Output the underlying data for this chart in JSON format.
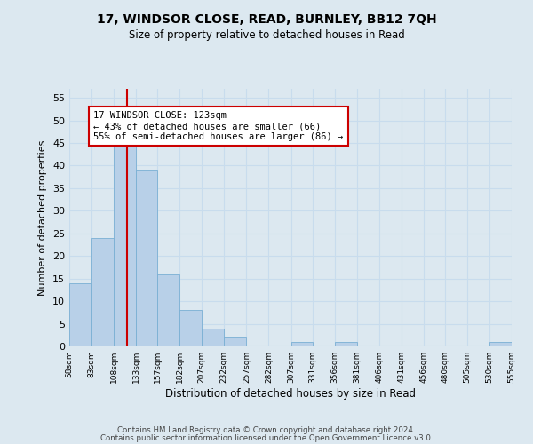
{
  "title1": "17, WINDSOR CLOSE, READ, BURNLEY, BB12 7QH",
  "title2": "Size of property relative to detached houses in Read",
  "xlabel": "Distribution of detached houses by size in Read",
  "ylabel": "Number of detached properties",
  "bin_edges": [
    58,
    83,
    108,
    133,
    157,
    182,
    207,
    232,
    257,
    282,
    307,
    331,
    356,
    381,
    406,
    431,
    456,
    480,
    505,
    530,
    555
  ],
  "bar_heights": [
    14,
    24,
    45,
    39,
    16,
    8,
    4,
    2,
    0,
    0,
    1,
    0,
    1,
    0,
    0,
    0,
    0,
    0,
    0,
    1
  ],
  "bar_color": "#b8d0e8",
  "bar_edgecolor": "#7aafd4",
  "grid_color": "#c8dced",
  "vline_x": 123,
  "vline_color": "#cc0000",
  "annotation_text": "17 WINDSOR CLOSE: 123sqm\n← 43% of detached houses are smaller (66)\n55% of semi-detached houses are larger (86) →",
  "annotation_box_edgecolor": "#cc0000",
  "annotation_box_facecolor": "#ffffff",
  "ylim": [
    0,
    57
  ],
  "yticks": [
    0,
    5,
    10,
    15,
    20,
    25,
    30,
    35,
    40,
    45,
    50,
    55
  ],
  "footer1": "Contains HM Land Registry data © Crown copyright and database right 2024.",
  "footer2": "Contains public sector information licensed under the Open Government Licence v3.0.",
  "background_color": "#dce8f0",
  "plot_bg_color": "#dce8f0"
}
